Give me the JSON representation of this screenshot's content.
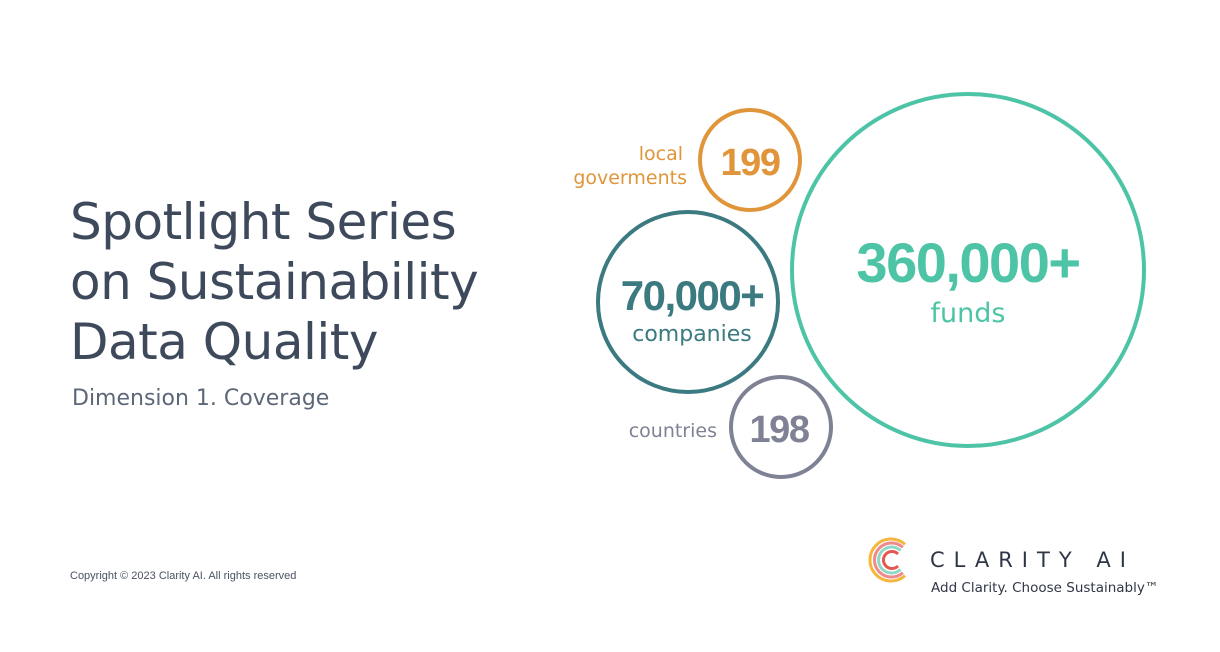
{
  "title_lines": [
    "Spotlight Series",
    "on Sustainability",
    "Data Quality"
  ],
  "subtitle": "Dimension 1. Coverage",
  "copyright": "Copyright © 2023 Clarity AI. All rights reserved",
  "stats": {
    "local_governments": {
      "value": "199",
      "label_line1": "local",
      "label_line2": "goverments",
      "color": "#e0953a"
    },
    "companies": {
      "value": "70,000+",
      "label": "companies",
      "color": "#3a7a80"
    },
    "funds": {
      "value": "360,000+",
      "label": "funds",
      "color": "#4ec4a6"
    },
    "countries": {
      "value": "198",
      "label": "countries",
      "color": "#7f8294"
    }
  },
  "brand": {
    "name": "CLARITY AI",
    "tagline": "Add Clarity. Choose Sustainably™",
    "text_color": "#2f3747",
    "ring_colors": [
      "#f4b63d",
      "#f08a8a",
      "#8ed8c4",
      "#e5584e"
    ]
  }
}
